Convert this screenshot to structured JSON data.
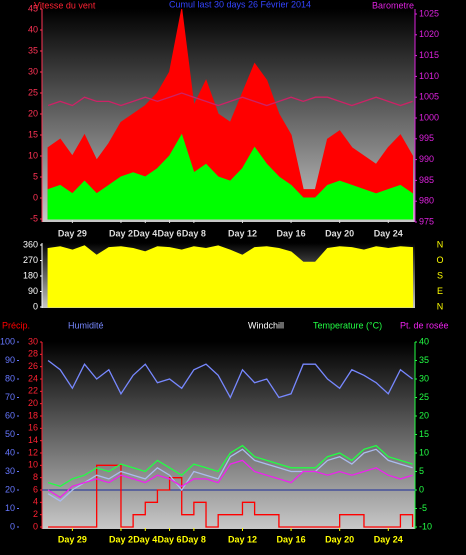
{
  "chart_data": [
    {
      "type": "area",
      "title": "Cumul last 30 days 26 Février 2014",
      "ylabel": "Vitesse du vent",
      "y2label": "Barometre",
      "x": [
        0,
        1,
        2,
        3,
        4,
        5,
        6,
        7,
        8,
        9,
        10,
        11,
        12,
        13,
        14,
        15,
        16,
        17,
        18,
        19,
        20,
        21,
        22,
        23,
        24,
        25,
        26,
        27,
        28,
        29,
        30
      ],
      "xlim": [
        -0.5,
        30.2
      ],
      "xticks": [
        {
          "value": 2,
          "label": "Day 29"
        },
        {
          "value": 6,
          "label": "Day 2"
        },
        {
          "value": 8,
          "label": "Day 4"
        },
        {
          "value": 10,
          "label": "Day 6"
        },
        {
          "value": 12,
          "label": "Day 8"
        },
        {
          "value": 16,
          "label": "Day 12"
        },
        {
          "value": 20,
          "label": "Day 16"
        },
        {
          "value": 24,
          "label": "Day 20"
        },
        {
          "value": 28,
          "label": "Day 24"
        }
      ],
      "ylim": [
        -5,
        45
      ],
      "yticks": [
        -5,
        0,
        5,
        10,
        15,
        20,
        25,
        30,
        35,
        40,
        45
      ],
      "ytick_color": "#ff3355",
      "y2lim": [
        975,
        1025
      ],
      "y2ticks": [
        975,
        980,
        985,
        990,
        995,
        1000,
        1005,
        1010,
        1015,
        1020,
        1025
      ],
      "y2tick_color": "#dd22dd",
      "series": [
        {
          "color": "#ff0000",
          "fill": true,
          "values": [
            12,
            14,
            10,
            15,
            9,
            13,
            18,
            20,
            22,
            25,
            30,
            45,
            22,
            28,
            20,
            18,
            25,
            32,
            28,
            20,
            15,
            2,
            2,
            14,
            16,
            12,
            10,
            8,
            12,
            15,
            10
          ]
        },
        {
          "color": "#00ff00",
          "fill": true,
          "values": [
            2,
            3,
            1,
            4,
            1,
            3,
            5,
            6,
            5,
            7,
            10,
            15,
            6,
            8,
            5,
            4,
            7,
            12,
            8,
            5,
            3,
            0,
            0,
            3,
            4,
            3,
            2,
            1,
            2,
            3,
            1
          ]
        },
        {
          "color": "#cc2266",
          "axis": "y2",
          "values": [
            1003,
            1004,
            1003,
            1005,
            1004,
            1004,
            1003,
            1004,
            1005,
            1004,
            1005,
            1006,
            1005,
            1004,
            1003,
            1004,
            1005,
            1004,
            1003,
            1004,
            1005,
            1004,
            1005,
            1005,
            1004,
            1003,
            1004,
            1005,
            1004,
            1003,
            1004
          ]
        }
      ]
    },
    {
      "type": "area",
      "compass": [
        "N",
        "O",
        "S",
        "E",
        "N"
      ],
      "x": [
        0,
        1,
        2,
        3,
        4,
        5,
        6,
        7,
        8,
        9,
        10,
        11,
        12,
        13,
        14,
        15,
        16,
        17,
        18,
        19,
        20,
        21,
        22,
        23,
        24,
        25,
        26,
        27,
        28,
        29,
        30
      ],
      "xlim": [
        -0.5,
        30.2
      ],
      "ylim": [
        0,
        360
      ],
      "yticks": [
        0,
        90,
        180,
        270,
        360
      ],
      "ytick_color": "#ffffff",
      "series": [
        {
          "color": "#ffff00",
          "fill": true,
          "values": [
            340,
            350,
            330,
            355,
            300,
            345,
            350,
            340,
            320,
            350,
            345,
            330,
            350,
            340,
            355,
            330,
            300,
            345,
            350,
            340,
            320,
            260,
            260,
            340,
            350,
            345,
            330,
            350,
            340,
            350,
            345
          ]
        }
      ]
    },
    {
      "type": "line",
      "x": [
        0,
        1,
        2,
        3,
        4,
        5,
        6,
        7,
        8,
        9,
        10,
        11,
        12,
        13,
        14,
        15,
        16,
        17,
        18,
        19,
        20,
        21,
        22,
        23,
        24,
        25,
        26,
        27,
        28,
        29,
        30
      ],
      "xlim": [
        -0.5,
        30.2
      ],
      "xticks": [
        {
          "value": 2,
          "label": "Day 29"
        },
        {
          "value": 6,
          "label": "Day 2"
        },
        {
          "value": 8,
          "label": "Day 4"
        },
        {
          "value": 10,
          "label": "Day 6"
        },
        {
          "value": 12,
          "label": "Day 8"
        },
        {
          "value": 16,
          "label": "Day 12"
        },
        {
          "value": 20,
          "label": "Day 16"
        },
        {
          "value": 24,
          "label": "Day 20"
        },
        {
          "value": 28,
          "label": "Day 24"
        }
      ],
      "ylim": [
        0,
        100
      ],
      "yticks": [
        0,
        10,
        20,
        30,
        40,
        50,
        60,
        70,
        80,
        90,
        100
      ],
      "ytick_color": "#6677ff",
      "y2lim": [
        -10,
        40
      ],
      "y2ticks": [
        -10,
        -5,
        0,
        5,
        10,
        15,
        20,
        25,
        30,
        35,
        40
      ],
      "y2tick_color": "#22ff44",
      "y3lim": [
        0,
        30
      ],
      "y3ticks": [
        0,
        2,
        4,
        6,
        8,
        10,
        12,
        14,
        16,
        18,
        20,
        22,
        24,
        26,
        28,
        30
      ],
      "y3tick_color": "#ff2233",
      "series": [
        {
          "name": "Précip.",
          "color": "#ff0000",
          "axis": "y3",
          "step": true,
          "values": [
            0,
            0,
            0,
            0,
            10,
            10,
            0,
            2,
            4,
            6,
            8,
            2,
            4,
            0,
            2,
            2,
            4,
            2,
            2,
            0,
            0,
            0,
            0,
            0,
            2,
            2,
            0,
            0,
            0,
            2,
            0
          ]
        },
        {
          "name": "Humidité",
          "color": "#7788ff",
          "values": [
            90,
            85,
            75,
            88,
            80,
            85,
            72,
            82,
            88,
            78,
            80,
            75,
            85,
            88,
            82,
            70,
            85,
            78,
            80,
            70,
            72,
            88,
            88,
            80,
            75,
            85,
            82,
            78,
            72,
            85,
            80
          ]
        },
        {
          "name": "Windchill",
          "color": "#aabbee",
          "axis": "y2",
          "values": [
            -1,
            -3,
            0,
            2,
            4,
            3,
            5,
            4,
            3,
            6,
            4,
            0,
            5,
            4,
            3,
            9,
            11,
            8,
            7,
            6,
            5,
            5,
            5,
            8,
            9,
            7,
            10,
            11,
            8,
            7,
            6
          ]
        },
        {
          "name": "Temperature (°C)",
          "color": "#22ff44",
          "axis": "y2",
          "values": [
            2,
            1,
            3,
            4,
            6,
            5,
            7,
            6,
            5,
            8,
            6,
            4,
            7,
            6,
            5,
            10,
            12,
            9,
            8,
            7,
            6,
            6,
            6,
            9,
            10,
            8,
            11,
            12,
            9,
            8,
            7
          ]
        },
        {
          "name": "Pt. de rosée",
          "color": "#ee22ee",
          "axis": "y2",
          "values": [
            0,
            -2,
            1,
            2,
            3,
            2,
            4,
            3,
            2,
            4,
            3,
            1,
            3,
            3,
            2,
            7,
            8,
            5,
            4,
            3,
            2,
            5,
            5,
            4,
            5,
            4,
            5,
            6,
            4,
            3,
            4
          ]
        }
      ]
    }
  ]
}
